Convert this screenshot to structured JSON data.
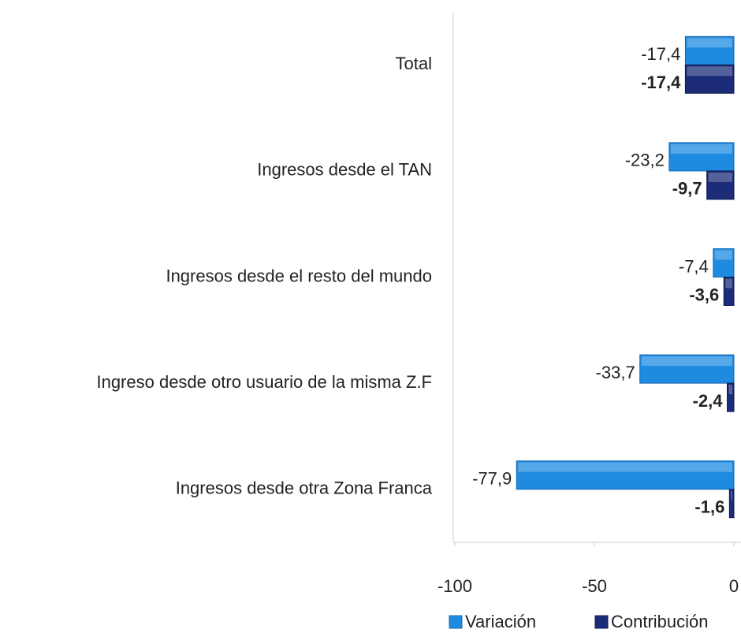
{
  "chart_data": {
    "type": "bar",
    "orientation": "horizontal",
    "categories": [
      "Total",
      "Ingresos desde el TAN",
      "Ingresos desde el resto del mundo",
      "Ingreso desde otro usuario de la misma Z.F",
      "Ingresos desde otra Zona Franca"
    ],
    "series": [
      {
        "name": "Variación",
        "color": "#1f8be0",
        "values": [
          -17.4,
          -23.2,
          -7.4,
          -33.7,
          -77.9
        ],
        "value_labels": [
          "-17,4",
          "-23,2",
          "-7,4",
          "-33,7",
          "-77,9"
        ]
      },
      {
        "name": "Contribución",
        "color": "#1c2c78",
        "values": [
          -17.4,
          -9.7,
          -3.6,
          -2.4,
          -1.6
        ],
        "value_labels": [
          "-17,4",
          "-9,7",
          "-3,6",
          "-2,4",
          "-1,6"
        ]
      }
    ],
    "xlim": [
      -100,
      0
    ],
    "xticks": [
      -100,
      -50,
      0
    ],
    "legend": "bottom"
  }
}
